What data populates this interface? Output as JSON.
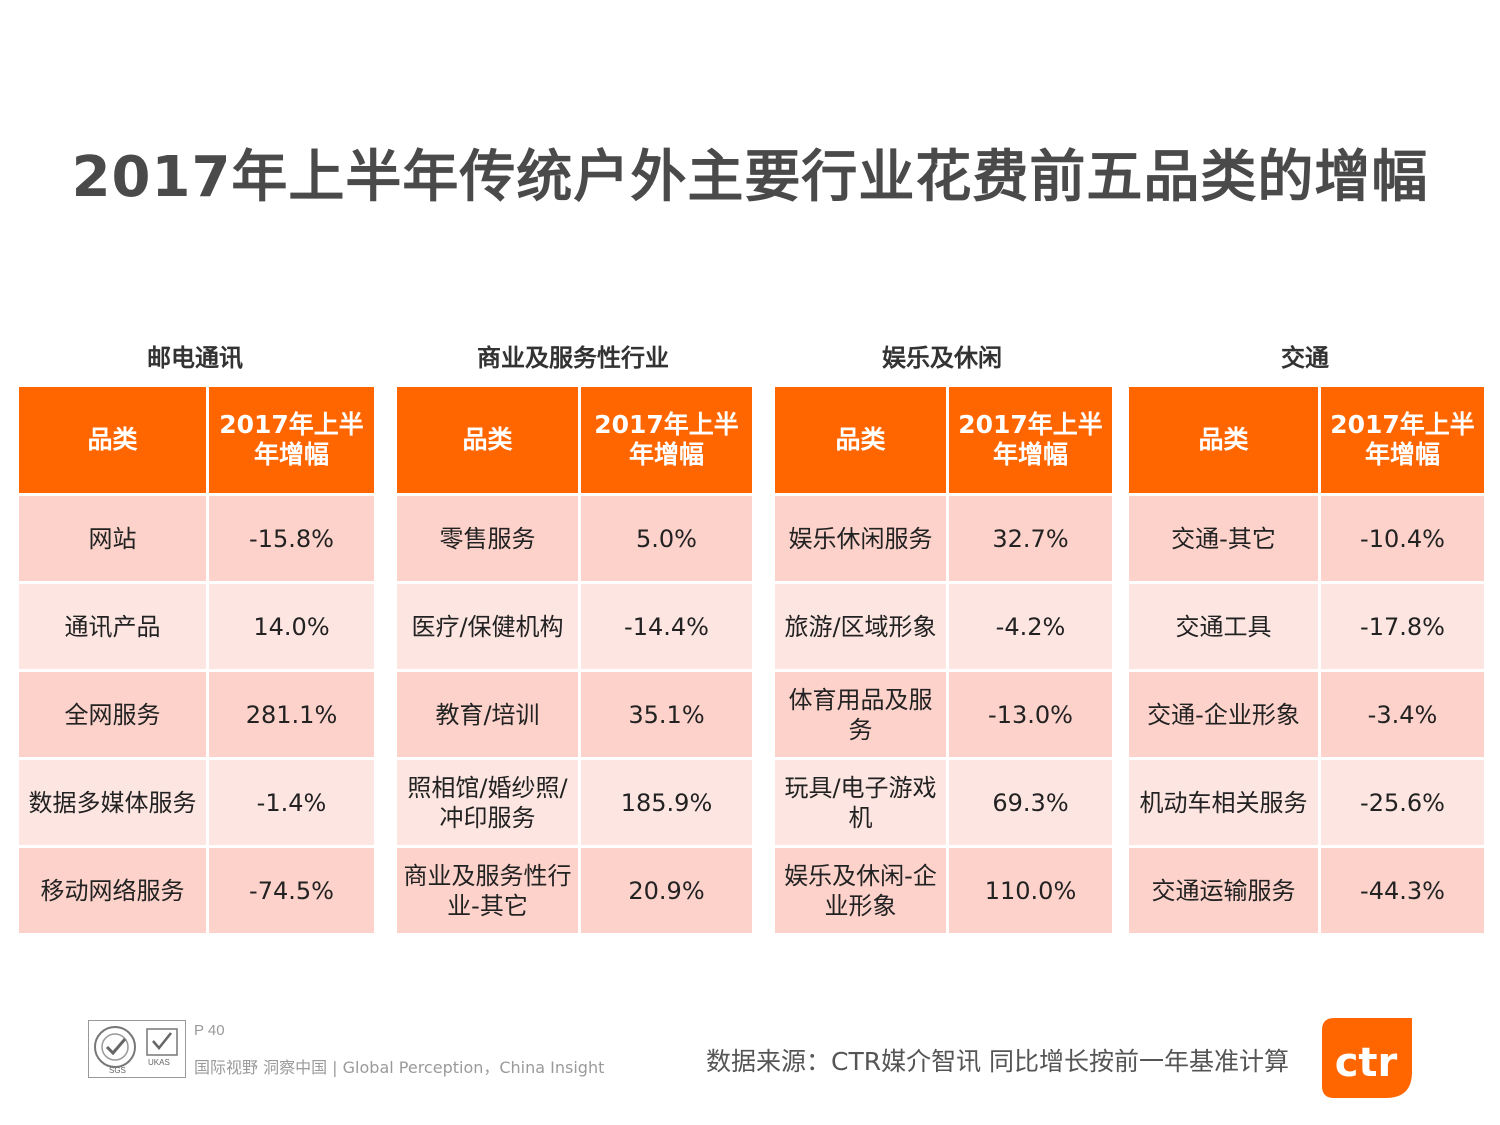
{
  "title": "2017年上半年传统户外主要行业花费前五品类的增幅",
  "panels": [
    {
      "heading": "邮电通讯",
      "col1": "品类",
      "col2": "2017年上半年增幅",
      "rows": [
        {
          "category": "网站",
          "growth": "-15.8%"
        },
        {
          "category": "通讯产品",
          "growth": "14.0%"
        },
        {
          "category": "全网服务",
          "growth": "281.1%"
        },
        {
          "category": "数据多媒体服务",
          "growth": "-1.4%"
        },
        {
          "category": "移动网络服务",
          "growth": "-74.5%"
        }
      ]
    },
    {
      "heading": "商业及服务性行业",
      "col1": "品类",
      "col2": "2017年上半年增幅",
      "rows": [
        {
          "category": "零售服务",
          "growth": "5.0%"
        },
        {
          "category": "医疗/保健机构",
          "growth": "-14.4%"
        },
        {
          "category": "教育/培训",
          "growth": "35.1%"
        },
        {
          "category": "照相馆/婚纱照/冲印服务",
          "growth": "185.9%"
        },
        {
          "category": "商业及服务性行业-其它",
          "growth": "20.9%"
        }
      ]
    },
    {
      "heading": "娱乐及休闲",
      "col1": "品类",
      "col2": "2017年上半年增幅",
      "rows": [
        {
          "category": "娱乐休闲服务",
          "growth": "32.7%"
        },
        {
          "category": "旅游/区域形象",
          "growth": "-4.2%"
        },
        {
          "category": "体育用品及服务",
          "growth": "-13.0%"
        },
        {
          "category": "玩具/电子游戏机",
          "growth": "69.3%"
        },
        {
          "category": "娱乐及休闲-企业形象",
          "growth": "110.0%"
        }
      ]
    },
    {
      "heading": "交通",
      "col1": "品类",
      "col2": "2017年上半年增幅",
      "rows": [
        {
          "category": "交通-其它",
          "growth": "-10.4%"
        },
        {
          "category": "交通工具",
          "growth": "-17.8%"
        },
        {
          "category": "交通-企业形象",
          "growth": "-3.4%"
        },
        {
          "category": "机动车相关服务",
          "growth": "-25.6%"
        },
        {
          "category": "交通运输服务",
          "growth": "-44.3%"
        }
      ]
    }
  ],
  "footer": {
    "page": "P 40",
    "tagline": "国际视野  洞察中国 |  Global Perception，China Insight",
    "source": "数据来源：CTR媒介智讯    同比增长按前一年基准计算",
    "brand": "ctr",
    "cert_logo_text": "SGS",
    "cert_ukas": "UKAS"
  },
  "colors": {
    "header": "#ff6600",
    "row_dark": "#fcd2cb",
    "row_light": "#fde6e2",
    "brand": "#ff6600"
  }
}
